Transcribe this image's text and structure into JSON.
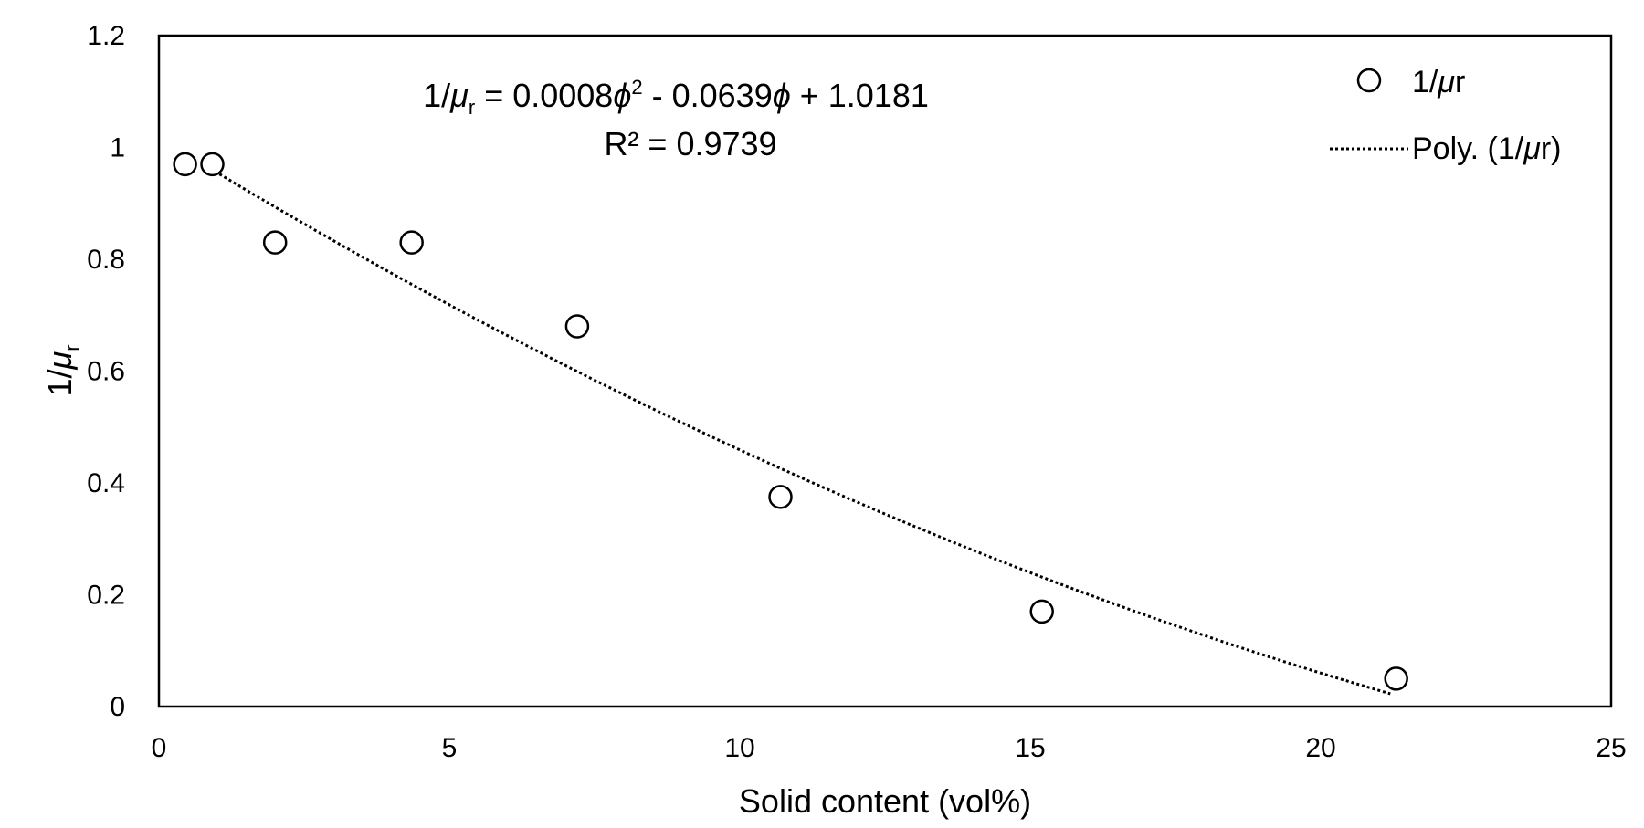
{
  "chart_data": {
    "type": "scatter",
    "title": "",
    "xlabel": "Solid content (vol%)",
    "ylabel": {
      "base": "1/",
      "greek": "μ",
      "sub": "r"
    },
    "xlim": [
      0,
      25
    ],
    "ylim": [
      0,
      1.2
    ],
    "x_ticks": [
      "0",
      "5",
      "10",
      "15",
      "20",
      "25"
    ],
    "y_ticks": [
      "0",
      "0.2",
      "0.4",
      "0.6",
      "0.8",
      "1",
      "1.2"
    ],
    "grid": false,
    "legend_position": "top-right",
    "series": [
      {
        "name": "1/μr",
        "marker": "open-circle",
        "x": [
          0.45,
          0.92,
          2.0,
          4.35,
          7.2,
          10.7,
          15.2,
          21.3
        ],
        "y": [
          0.97,
          0.97,
          0.83,
          0.83,
          0.68,
          0.375,
          0.17,
          0.05
        ]
      }
    ],
    "trendline": {
      "name": "Poly. (1/μr)",
      "style": "dotted",
      "coefficients": [
        0.0008,
        -0.0639,
        1.0181
      ],
      "x_range": [
        0.8,
        21.2
      ]
    },
    "annotations": {
      "equation": {
        "lhs_base": "1/",
        "lhs_greek": "μ",
        "lhs_sub": "r",
        "part1": " = 0.0008",
        "phi1": "ϕ",
        "exp": "2",
        "part2": " - 0.0639",
        "phi2": "ϕ",
        "part3": " + 1.0181"
      },
      "r_squared": "R² = 0.9739"
    },
    "legend": {
      "marker_label_prefix": "1/",
      "marker_label_greek": "μ",
      "marker_label_suffix": "r",
      "line_label_prefix": "Poly. (1/",
      "line_label_greek": "μ",
      "line_label_suffix": "r)"
    }
  }
}
